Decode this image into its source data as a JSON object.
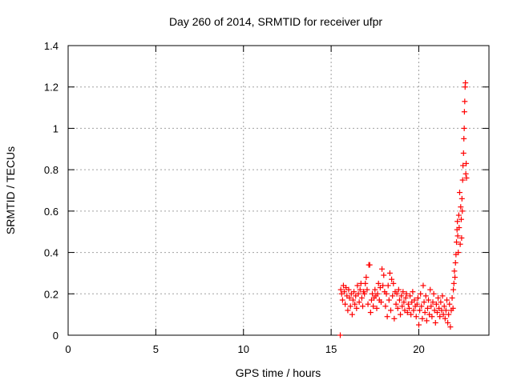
{
  "chart_data": {
    "type": "scatter",
    "title": "Day 260 of 2014, SRMTID for receiver ufpr",
    "xlabel": "GPS time / hours",
    "ylabel": "SRMTID / TECUs",
    "xlim": [
      0,
      24
    ],
    "ylim": [
      0,
      1.4
    ],
    "grid": true,
    "x_ticks": [
      0,
      5,
      10,
      15,
      20
    ],
    "y_ticks": [
      0,
      0.2,
      0.4,
      0.6,
      0.8,
      1,
      1.2,
      1.4
    ],
    "x_tick_labels": [
      "0",
      "5",
      "10",
      "15",
      "20"
    ],
    "y_tick_labels": [
      "0",
      "0.2",
      "0.4",
      "0.6",
      "0.8",
      "1",
      "1.2",
      "1.4"
    ],
    "marker": "+",
    "marker_color": "#ff0000",
    "series": [
      {
        "name": "SRMTID",
        "points": [
          [
            15.52,
            0.0
          ],
          [
            15.55,
            0.22
          ],
          [
            15.6,
            0.2
          ],
          [
            15.65,
            0.17
          ],
          [
            15.7,
            0.24
          ],
          [
            15.75,
            0.21
          ],
          [
            15.8,
            0.15
          ],
          [
            15.85,
            0.23
          ],
          [
            15.9,
            0.19
          ],
          [
            15.95,
            0.12
          ],
          [
            16.0,
            0.22
          ],
          [
            16.05,
            0.18
          ],
          [
            16.1,
            0.14
          ],
          [
            16.15,
            0.2
          ],
          [
            16.2,
            0.1
          ],
          [
            16.25,
            0.17
          ],
          [
            16.3,
            0.21
          ],
          [
            16.35,
            0.15
          ],
          [
            16.4,
            0.19
          ],
          [
            16.45,
            0.13
          ],
          [
            16.5,
            0.24
          ],
          [
            16.55,
            0.2
          ],
          [
            16.6,
            0.16
          ],
          [
            16.65,
            0.22
          ],
          [
            16.7,
            0.25
          ],
          [
            16.75,
            0.18
          ],
          [
            16.8,
            0.14
          ],
          [
            16.85,
            0.21
          ],
          [
            16.9,
            0.2
          ],
          [
            16.95,
            0.25
          ],
          [
            17.0,
            0.28
          ],
          [
            17.05,
            0.22
          ],
          [
            17.1,
            0.15
          ],
          [
            17.15,
            0.34
          ],
          [
            17.2,
            0.34
          ],
          [
            17.25,
            0.11
          ],
          [
            17.3,
            0.17
          ],
          [
            17.35,
            0.2
          ],
          [
            17.4,
            0.14
          ],
          [
            17.45,
            0.18
          ],
          [
            17.5,
            0.22
          ],
          [
            17.55,
            0.19
          ],
          [
            17.6,
            0.13
          ],
          [
            17.65,
            0.2
          ],
          [
            17.7,
            0.25
          ],
          [
            17.75,
            0.17
          ],
          [
            17.8,
            0.23
          ],
          [
            17.85,
            0.16
          ],
          [
            17.9,
            0.32
          ],
          [
            17.95,
            0.24
          ],
          [
            18.0,
            0.29
          ],
          [
            18.05,
            0.21
          ],
          [
            18.1,
            0.14
          ],
          [
            18.15,
            0.2
          ],
          [
            18.2,
            0.09
          ],
          [
            18.25,
            0.24
          ],
          [
            18.3,
            0.17
          ],
          [
            18.35,
            0.3
          ],
          [
            18.4,
            0.12
          ],
          [
            18.45,
            0.27
          ],
          [
            18.5,
            0.19
          ],
          [
            18.55,
            0.25
          ],
          [
            18.6,
            0.08
          ],
          [
            18.65,
            0.21
          ],
          [
            18.7,
            0.15
          ],
          [
            18.75,
            0.2
          ],
          [
            18.8,
            0.13
          ],
          [
            18.85,
            0.22
          ],
          [
            18.9,
            0.17
          ],
          [
            18.95,
            0.1
          ],
          [
            19.0,
            0.19
          ],
          [
            19.05,
            0.14
          ],
          [
            19.1,
            0.21
          ],
          [
            19.15,
            0.16
          ],
          [
            19.2,
            0.12
          ],
          [
            19.25,
            0.18
          ],
          [
            19.3,
            0.2
          ],
          [
            19.35,
            0.11
          ],
          [
            19.4,
            0.15
          ],
          [
            19.45,
            0.13
          ],
          [
            19.5,
            0.19
          ],
          [
            19.55,
            0.1
          ],
          [
            19.6,
            0.16
          ],
          [
            19.65,
            0.21
          ],
          [
            19.7,
            0.12
          ],
          [
            19.75,
            0.17
          ],
          [
            19.8,
            0.14
          ],
          [
            19.85,
            0.09
          ],
          [
            19.9,
            0.15
          ],
          [
            19.95,
            0.18
          ],
          [
            20.0,
            0.05
          ],
          [
            20.05,
            0.12
          ],
          [
            20.1,
            0.2
          ],
          [
            20.15,
            0.14
          ],
          [
            20.2,
            0.08
          ],
          [
            20.25,
            0.24
          ],
          [
            20.3,
            0.16
          ],
          [
            20.35,
            0.11
          ],
          [
            20.4,
            0.19
          ],
          [
            20.45,
            0.07
          ],
          [
            20.5,
            0.13
          ],
          [
            20.55,
            0.17
          ],
          [
            20.6,
            0.1
          ],
          [
            20.65,
            0.22
          ],
          [
            20.7,
            0.14
          ],
          [
            20.75,
            0.09
          ],
          [
            20.8,
            0.16
          ],
          [
            20.85,
            0.2
          ],
          [
            20.9,
            0.12
          ],
          [
            20.95,
            0.06
          ],
          [
            21.0,
            0.15
          ],
          [
            21.05,
            0.11
          ],
          [
            21.1,
            0.18
          ],
          [
            21.15,
            0.13
          ],
          [
            21.2,
            0.09
          ],
          [
            21.25,
            0.16
          ],
          [
            21.3,
            0.12
          ],
          [
            21.35,
            0.19
          ],
          [
            21.4,
            0.1
          ],
          [
            21.45,
            0.14
          ],
          [
            21.5,
            0.08
          ],
          [
            21.55,
            0.12
          ],
          [
            21.6,
            0.17
          ],
          [
            21.65,
            0.06
          ],
          [
            21.7,
            0.1
          ],
          [
            21.75,
            0.15
          ],
          [
            21.8,
            0.04
          ],
          [
            21.85,
            0.12
          ],
          [
            21.9,
            0.18
          ],
          [
            21.95,
            0.13
          ],
          [
            21.97,
            0.22
          ],
          [
            22.0,
            0.25
          ],
          [
            22.03,
            0.31
          ],
          [
            22.06,
            0.28
          ],
          [
            22.09,
            0.35
          ],
          [
            22.12,
            0.39
          ],
          [
            22.15,
            0.45
          ],
          [
            22.18,
            0.51
          ],
          [
            22.2,
            0.55
          ],
          [
            22.22,
            0.48
          ],
          [
            22.25,
            0.4
          ],
          [
            22.28,
            0.58
          ],
          [
            22.3,
            0.52
          ],
          [
            22.33,
            0.69
          ],
          [
            22.36,
            0.44
          ],
          [
            22.39,
            0.62
          ],
          [
            22.42,
            0.56
          ],
          [
            22.44,
            0.47
          ],
          [
            22.46,
            0.66
          ],
          [
            22.48,
            0.6
          ],
          [
            22.5,
            0.75
          ],
          [
            22.52,
            0.82
          ],
          [
            22.55,
            0.88
          ],
          [
            22.57,
            0.95
          ],
          [
            22.59,
            1.0
          ],
          [
            22.6,
            1.08
          ],
          [
            22.62,
            1.13
          ],
          [
            22.64,
            1.2
          ],
          [
            22.66,
            1.22
          ],
          [
            22.68,
            0.78
          ],
          [
            22.7,
            0.83
          ],
          [
            22.72,
            0.76
          ]
        ]
      }
    ]
  }
}
